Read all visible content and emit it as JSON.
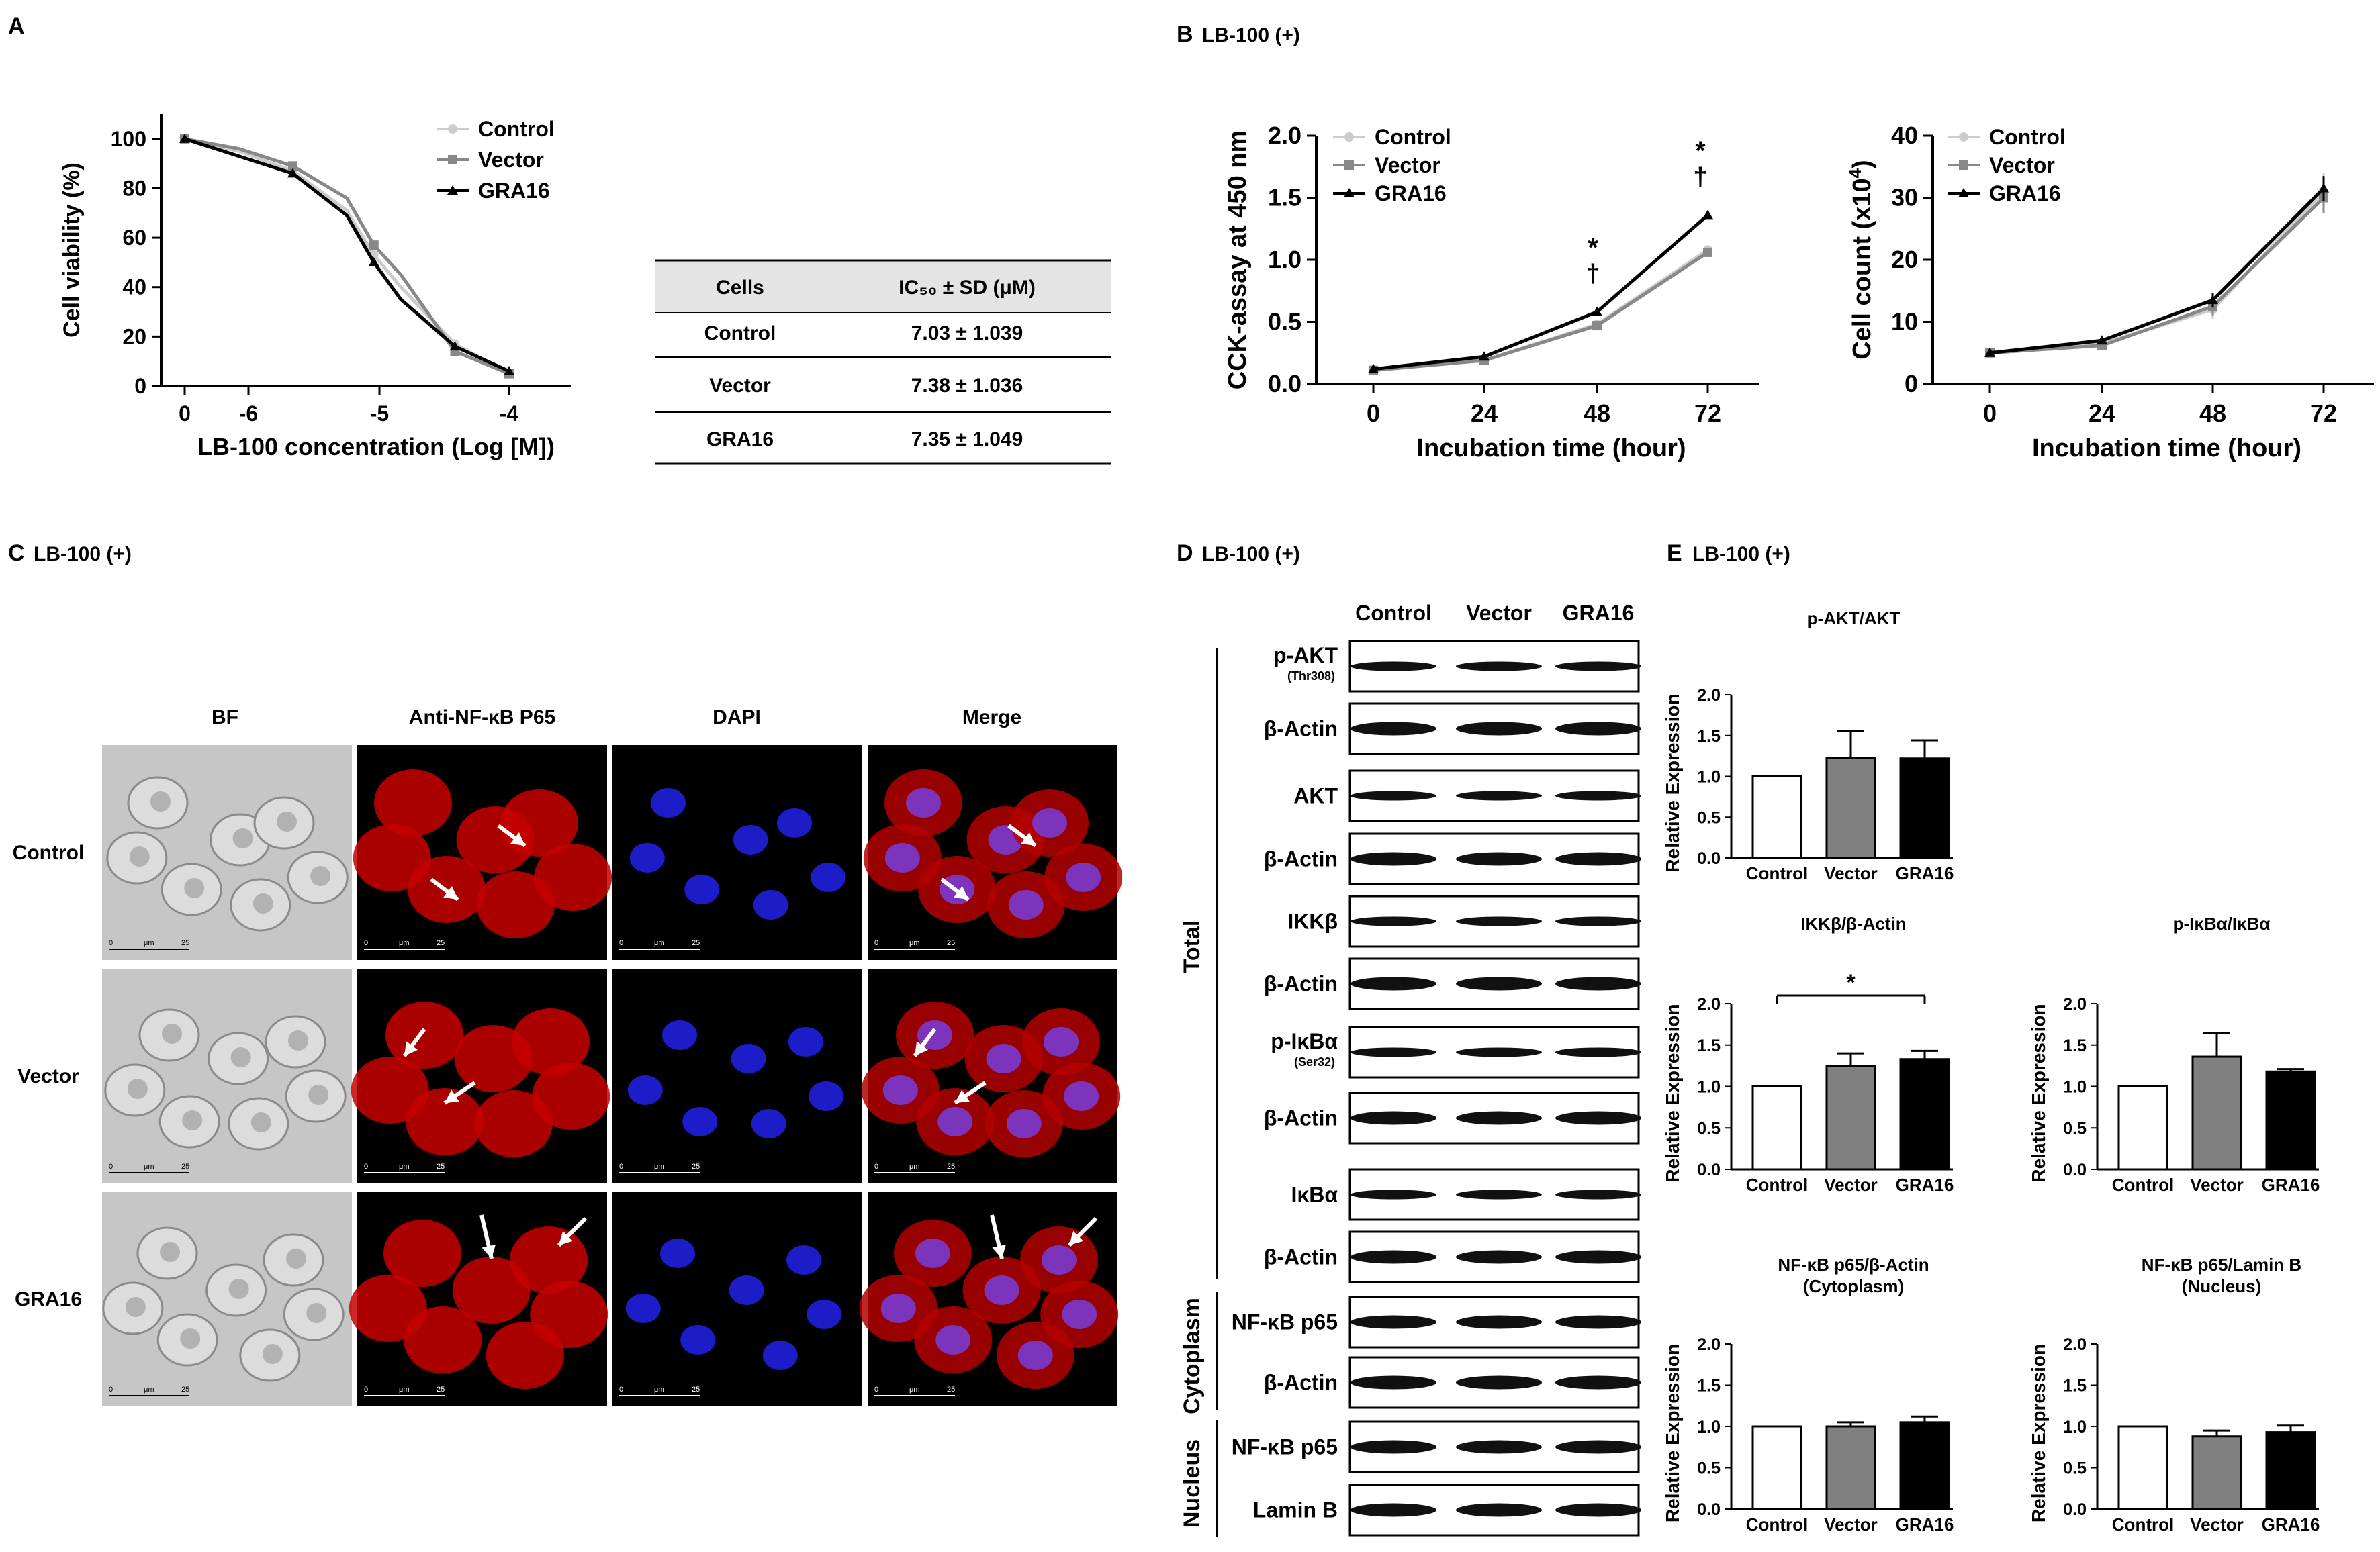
{
  "panels": {
    "A": {
      "letter": "A"
    },
    "B": {
      "letter": "B",
      "title": "LB-100 (+)"
    },
    "C": {
      "letter": "C",
      "title": "LB-100 (+)"
    },
    "D": {
      "letter": "D",
      "title": "LB-100 (+)"
    },
    "E": {
      "letter": "E",
      "title": "LB-100 (+)"
    }
  },
  "legend_labels": [
    "Control",
    "Vector",
    "GRA16"
  ],
  "series_colors": {
    "Control": "#cccccc",
    "Vector": "#888888",
    "GRA16": "#000000"
  },
  "chart_data": [
    {
      "id": "A-viability",
      "type": "line",
      "xlabel": "LB-100 concentration (Log [M])",
      "ylabel": "Cell viability (%)",
      "x_tick_labels": [
        "0",
        "-6",
        "-5",
        "-4"
      ],
      "ylim": [
        0,
        110
      ],
      "yticks": [
        0,
        20,
        40,
        60,
        80,
        100
      ],
      "x": [
        0,
        -6.5,
        -6,
        -5.5,
        -5.25,
        -5,
        -4.5,
        -4
      ],
      "series": [
        {
          "name": "Control",
          "values": [
            100,
            95,
            87,
            71,
            53,
            40,
            17,
            5
          ]
        },
        {
          "name": "Vector",
          "values": [
            100,
            96,
            89,
            76,
            57,
            45,
            14,
            5
          ]
        },
        {
          "name": "GRA16",
          "values": [
            100,
            93,
            86,
            69,
            50,
            35,
            16,
            6
          ]
        }
      ]
    },
    {
      "id": "B-cck",
      "type": "line",
      "xlabel": "Incubation time (hour)",
      "ylabel": "CCK-assay at 450 nm",
      "x": [
        0,
        24,
        48,
        72
      ],
      "ylim": [
        0,
        2.0
      ],
      "yticks": [
        "0.0",
        "0.5",
        "1.0",
        "1.5",
        "2.0"
      ],
      "series": [
        {
          "name": "Control",
          "values": [
            0.11,
            0.19,
            0.48,
            1.08
          ]
        },
        {
          "name": "Vector",
          "values": [
            0.11,
            0.19,
            0.47,
            1.06
          ]
        },
        {
          "name": "GRA16",
          "values": [
            0.12,
            0.22,
            0.58,
            1.36
          ]
        }
      ],
      "annotations": [
        {
          "x": 48,
          "text": "*"
        },
        {
          "x": 48,
          "text": "†"
        },
        {
          "x": 72,
          "text": "*"
        },
        {
          "x": 72,
          "text": "†"
        }
      ]
    },
    {
      "id": "B-count",
      "type": "line",
      "xlabel": "Incubation time (hour)",
      "ylabel": "Cell count",
      "ylabel_unit": "(x10",
      "ylabel_exp": "4",
      "ylabel_close": ")",
      "x": [
        0,
        24,
        48,
        72
      ],
      "ylim": [
        0,
        40
      ],
      "yticks": [
        0,
        10,
        20,
        30,
        40
      ],
      "series": [
        {
          "name": "Control",
          "values": [
            5,
            6.5,
            12,
            31
          ],
          "err": [
            0.3,
            0.6,
            1.5,
            3
          ]
        },
        {
          "name": "Vector",
          "values": [
            5,
            6.2,
            12.5,
            30
          ],
          "err": [
            0.3,
            0.6,
            1.5,
            2.5
          ]
        },
        {
          "name": "GRA16",
          "values": [
            5,
            7,
            13.5,
            31.5
          ],
          "err": [
            0.3,
            0.5,
            1.2,
            2
          ]
        }
      ]
    },
    {
      "id": "E-pAKT",
      "type": "bar",
      "title": "p-AKT/AKT",
      "ylabel": "Relative Expression",
      "categories": [
        "Control",
        "Vector",
        "GRA16"
      ],
      "values": [
        1.0,
        1.23,
        1.22
      ],
      "err": [
        0,
        0.33,
        0.22
      ],
      "ylim": [
        0,
        2.0
      ],
      "yticks": [
        "0.0",
        "0.5",
        "1.0",
        "1.5",
        "2.0"
      ]
    },
    {
      "id": "E-IKKb",
      "type": "bar",
      "title": "IKKβ/β-Actin",
      "ylabel": "Relative Expression",
      "categories": [
        "Control",
        "Vector",
        "GRA16"
      ],
      "values": [
        1.0,
        1.25,
        1.33
      ],
      "err": [
        0,
        0.15,
        0.1
      ],
      "ylim": [
        0,
        2.0
      ],
      "yticks": [
        "0.0",
        "0.5",
        "1.0",
        "1.5",
        "2.0"
      ],
      "significance": "*"
    },
    {
      "id": "E-pIkBa",
      "type": "bar",
      "title": "p-IκBα/IκBα",
      "ylabel": "Relative Expression",
      "categories": [
        "Control",
        "Vector",
        "GRA16"
      ],
      "values": [
        1.0,
        1.36,
        1.18
      ],
      "err": [
        0,
        0.28,
        0.03
      ],
      "ylim": [
        0,
        2.0
      ],
      "yticks": [
        "0.0",
        "0.5",
        "1.0",
        "1.5",
        "2.0"
      ]
    },
    {
      "id": "E-p65-cyto",
      "type": "bar",
      "title": "NF-κB p65/β-Actin",
      "subtitle": "(Cytoplasm)",
      "ylabel": "Relative Expression",
      "categories": [
        "Control",
        "Vector",
        "GRA16"
      ],
      "values": [
        1.0,
        1.0,
        1.05
      ],
      "err": [
        0,
        0.05,
        0.07
      ],
      "ylim": [
        0,
        2.0
      ],
      "yticks": [
        "0.0",
        "0.5",
        "1.0",
        "1.5",
        "2.0"
      ]
    },
    {
      "id": "E-p65-nuc",
      "type": "bar",
      "title": "NF-κB p65/Lamin B",
      "subtitle": "(Nucleus)",
      "ylabel": "Relative Expression",
      "categories": [
        "Control",
        "Vector",
        "GRA16"
      ],
      "values": [
        1.0,
        0.88,
        0.93
      ],
      "err": [
        0,
        0.07,
        0.08
      ],
      "ylim": [
        0,
        2.0
      ],
      "yticks": [
        "0.0",
        "0.5",
        "1.0",
        "1.5",
        "2.0"
      ]
    }
  ],
  "ic50_table": {
    "headers": [
      "Cells",
      "IC₅₀ ± SD (μM)"
    ],
    "rows": [
      [
        "Control",
        "7.03 ± 1.039"
      ],
      [
        "Vector",
        "7.38 ± 1.036"
      ],
      [
        "GRA16",
        "7.35 ± 1.049"
      ]
    ]
  },
  "microscopy": {
    "columns": [
      "BF",
      "Anti-NF-κB P65",
      "DAPI",
      "Merge"
    ],
    "rows": [
      "Control",
      "Vector",
      "GRA16"
    ],
    "scale_label_left": "0",
    "scale_label_mid": "μm",
    "scale_label_right": "25",
    "channel_colors": {
      "BF": "#b8b8b8",
      "Anti-NF-κB P65": "#c80000",
      "DAPI": "#1c1cc8",
      "Merge": "#b40000"
    }
  },
  "western": {
    "lanes": [
      "Control",
      "Vector",
      "GRA16"
    ],
    "groups": [
      "Total",
      "Cytoplasm",
      "Nucleus"
    ],
    "blots": [
      {
        "label": "p-AKT",
        "sub": "(Thr308)"
      },
      {
        "label": "β-Actin",
        "sub": ""
      },
      {
        "label": "AKT",
        "sub": ""
      },
      {
        "label": "β-Actin",
        "sub": ""
      },
      {
        "label": "IKKβ",
        "sub": ""
      },
      {
        "label": "β-Actin",
        "sub": ""
      },
      {
        "label": "p-IκBα",
        "sub": "(Ser32)"
      },
      {
        "label": "β-Actin",
        "sub": ""
      },
      {
        "label": "IκBα",
        "sub": ""
      },
      {
        "label": "β-Actin",
        "sub": ""
      },
      {
        "label": "NF-κB p65",
        "sub": ""
      },
      {
        "label": "β-Actin",
        "sub": ""
      },
      {
        "label": "NF-κB p65",
        "sub": ""
      },
      {
        "label": "Lamin B",
        "sub": ""
      }
    ]
  }
}
